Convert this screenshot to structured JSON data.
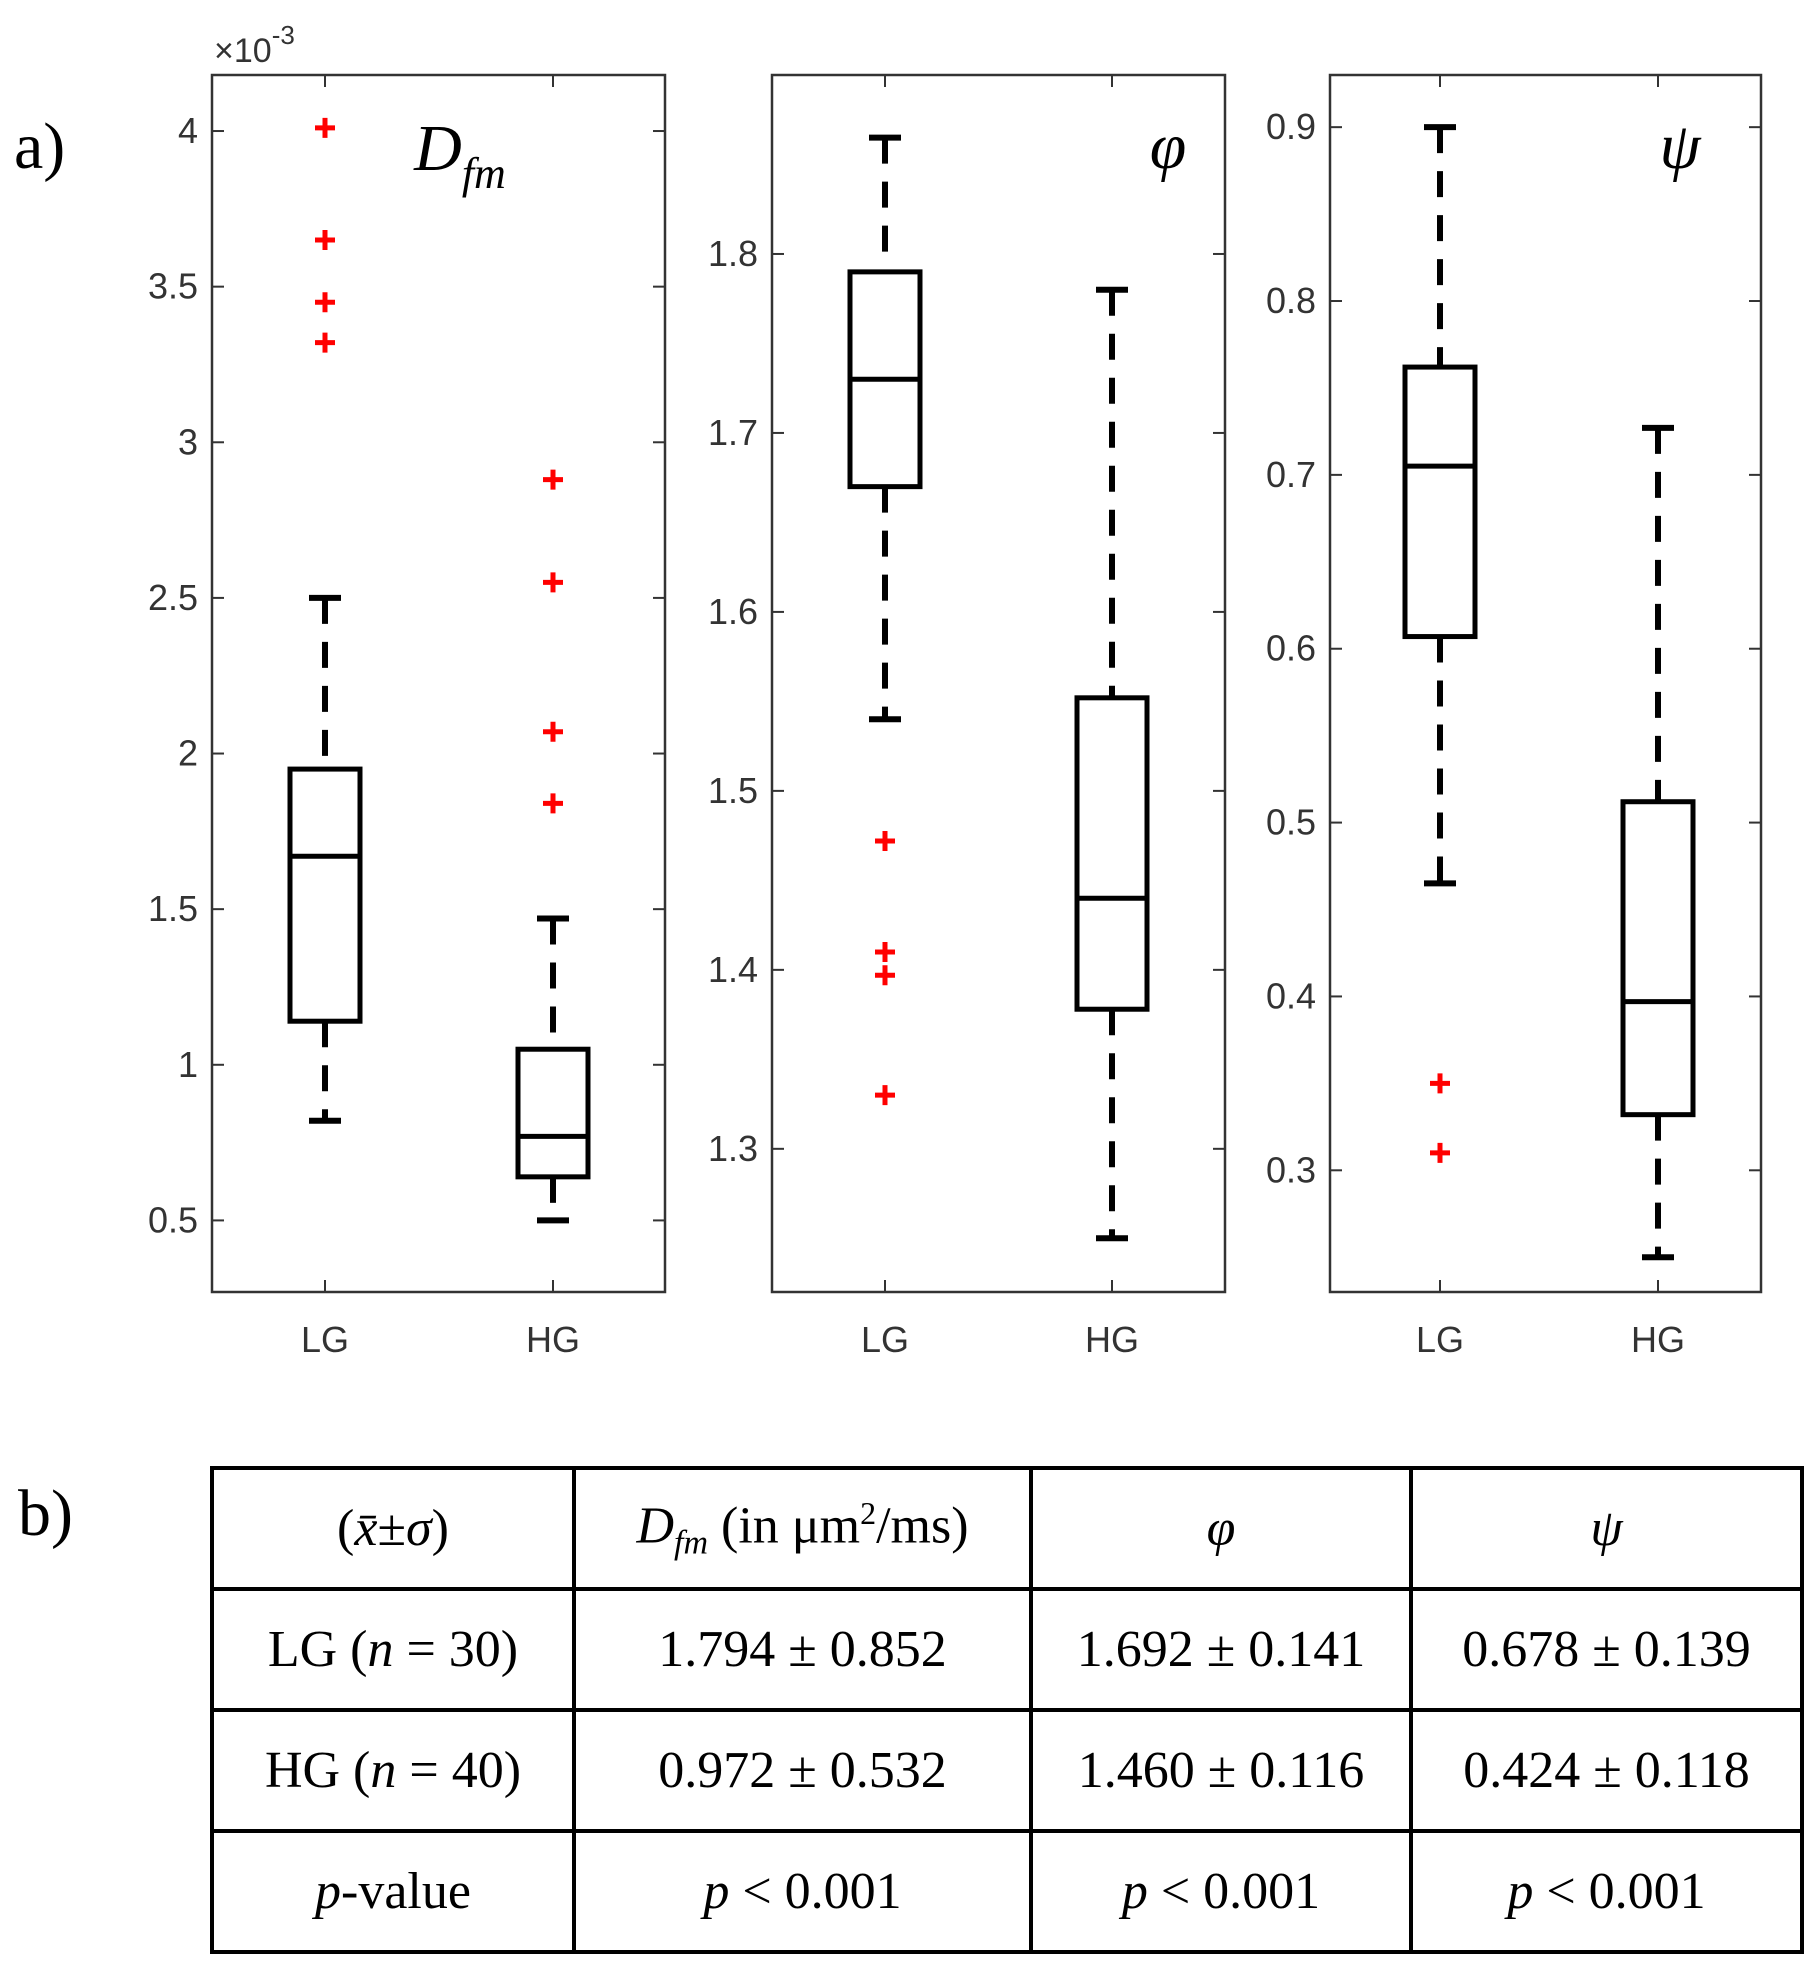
{
  "panel_labels": {
    "a": "a)",
    "b": "b)"
  },
  "chart_data": [
    {
      "type": "boxplot",
      "title": "D_fm",
      "title_main": "D",
      "title_sub": "fm",
      "exponent": "×10",
      "exponent_power": "-3",
      "categories": [
        "LG",
        "HG"
      ],
      "ylim": [
        0.27,
        4.18
      ],
      "yticks": [
        0.5,
        1,
        1.5,
        2,
        2.5,
        3,
        3.5,
        4
      ],
      "ytick_labels": [
        "0.5",
        "1",
        "1.5",
        "2",
        "2.5",
        "3",
        "3.5",
        "4"
      ],
      "boxes": [
        {
          "name": "LG",
          "whisker_low": 0.82,
          "q1": 1.14,
          "median": 1.67,
          "q3": 1.95,
          "whisker_high": 2.5,
          "outliers": [
            3.32,
            3.45,
            3.65,
            4.01
          ]
        },
        {
          "name": "HG",
          "whisker_low": 0.5,
          "q1": 0.64,
          "median": 0.77,
          "q3": 1.05,
          "whisker_high": 1.47,
          "outliers": [
            1.84,
            2.07,
            2.55,
            2.88
          ]
        }
      ]
    },
    {
      "type": "boxplot",
      "title": "φ",
      "categories": [
        "LG",
        "HG"
      ],
      "ylim": [
        1.22,
        1.9
      ],
      "yticks": [
        1.3,
        1.4,
        1.5,
        1.6,
        1.7,
        1.8
      ],
      "ytick_labels": [
        "1.3",
        "1.4",
        "1.5",
        "1.6",
        "1.7",
        "1.8"
      ],
      "boxes": [
        {
          "name": "LG",
          "whisker_low": 1.54,
          "q1": 1.67,
          "median": 1.73,
          "q3": 1.79,
          "whisker_high": 1.865,
          "outliers": [
            1.33,
            1.397,
            1.41,
            1.472
          ]
        },
        {
          "name": "HG",
          "whisker_low": 1.25,
          "q1": 1.378,
          "median": 1.44,
          "q3": 1.552,
          "whisker_high": 1.78,
          "outliers": []
        }
      ]
    },
    {
      "type": "boxplot",
      "title": "ψ",
      "categories": [
        "LG",
        "HG"
      ],
      "ylim": [
        0.23,
        0.93
      ],
      "yticks": [
        0.3,
        0.4,
        0.5,
        0.6,
        0.7,
        0.8,
        0.9
      ],
      "ytick_labels": [
        "0.3",
        "0.4",
        "0.5",
        "0.6",
        "0.7",
        "0.8",
        "0.9"
      ],
      "boxes": [
        {
          "name": "LG",
          "whisker_low": 0.465,
          "q1": 0.607,
          "median": 0.705,
          "q3": 0.762,
          "whisker_high": 0.9,
          "outliers": [
            0.31,
            0.35
          ]
        },
        {
          "name": "HG",
          "whisker_low": 0.25,
          "q1": 0.332,
          "median": 0.397,
          "q3": 0.512,
          "whisker_high": 0.727,
          "outliers": []
        }
      ]
    }
  ],
  "table": {
    "header": {
      "col0_open": "(",
      "col0_xbar": "x̄",
      "col0_pm": "±",
      "col0_sigma": "σ",
      "col0_close": ")",
      "col1_main": "D",
      "col1_sub": "fm",
      "col1_rest_a": " (in μm",
      "col1_sup": "2",
      "col1_rest_b": "/ms)",
      "col2": "φ",
      "col3": "ψ"
    },
    "rows": [
      {
        "label_a": "LG (",
        "label_n": "n",
        "label_b": " = 30)",
        "dfm": "1.794 ± 0.852",
        "phi": "1.692 ± 0.141",
        "psi": "0.678 ± 0.139"
      },
      {
        "label_a": "HG (",
        "label_n": "n",
        "label_b": " = 40)",
        "dfm": "0.972 ± 0.532",
        "phi": "1.460 ± 0.116",
        "psi": "0.424 ± 0.118"
      }
    ],
    "pvalue_row": {
      "label_p": "p",
      "label_rest": "-value",
      "cells": [
        {
          "p": "p",
          "rest": " < 0.001"
        },
        {
          "p": "p",
          "rest": " < 0.001"
        },
        {
          "p": "p",
          "rest": " < 0.001"
        }
      ]
    }
  },
  "colors": {
    "box": "#000000",
    "outlier": "#ff0000",
    "axis": "#333333"
  }
}
